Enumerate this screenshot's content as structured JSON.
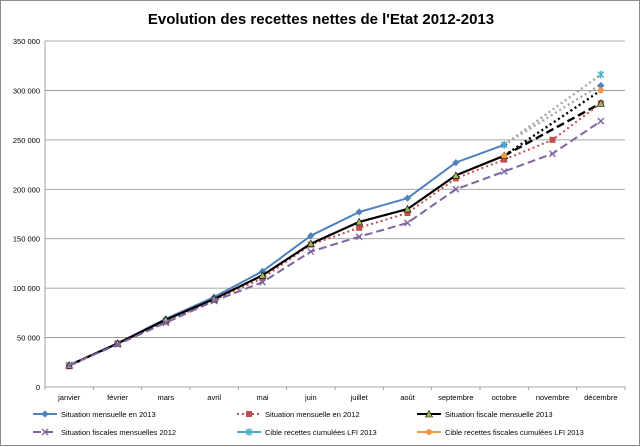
{
  "chart_data": {
    "type": "line",
    "title": "Evolution des recettes nettes de l'Etat 2012-2013",
    "xlabel": "",
    "ylabel": "",
    "categories": [
      "janvier",
      "février",
      "mars",
      "avril",
      "mai",
      "juin",
      "juillet",
      "août",
      "septembre",
      "octobre",
      "novembre",
      "décembre"
    ],
    "y_ticks": [
      "0",
      "50 000",
      "100 000",
      "150 000",
      "200 000",
      "250 000",
      "300 000",
      "350 000"
    ],
    "ylim": [
      0,
      350000
    ],
    "grid": true,
    "legend_position": "bottom",
    "series": [
      {
        "name": "Situation mensuelle en 2013",
        "color": "#4f81bd",
        "style": "solid",
        "marker": "diamond",
        "values": [
          22000,
          44000,
          69000,
          91000,
          117000,
          153000,
          177000,
          191000,
          227000,
          245000,
          null,
          305000
        ]
      },
      {
        "name": "Situation mensuelle en 2012",
        "color": "#c0504d",
        "style": "dotted",
        "marker": "square",
        "values": [
          21000,
          44000,
          66000,
          88000,
          110000,
          144000,
          161000,
          176000,
          211000,
          230000,
          250000,
          287000
        ]
      },
      {
        "name": "Situation fiscale mensuelle 2013",
        "color": "#000000",
        "style": "solid",
        "marker": "triangle",
        "values": [
          22000,
          44000,
          68000,
          89000,
          113000,
          145000,
          167000,
          180000,
          214000,
          234000,
          null,
          287000
        ]
      },
      {
        "name": "Situation fiscales mensuelles 2012",
        "color": "#8064a2",
        "style": "dashed",
        "marker": "x",
        "values": [
          22000,
          43000,
          65000,
          87000,
          106000,
          137000,
          152000,
          166000,
          200000,
          218000,
          236000,
          269000
        ]
      },
      {
        "name": "Cible recettes cumulées LFI 2013",
        "color": "#4bacc6",
        "style": "solid",
        "marker": "star",
        "values": [
          null,
          null,
          null,
          null,
          null,
          null,
          null,
          null,
          null,
          245000,
          null,
          316000
        ]
      },
      {
        "name": "Cible recettes fiscales cumulées LFI 2013",
        "color": "#f79646",
        "style": "solid",
        "marker": "circle",
        "values": [
          null,
          null,
          null,
          null,
          null,
          null,
          null,
          null,
          null,
          234000,
          null,
          300000
        ]
      }
    ],
    "projections": [
      {
        "color": "#a6a6a6",
        "style": "dotted",
        "from": [
          9,
          245000
        ],
        "to": [
          11,
          316000
        ]
      },
      {
        "color": "#a6a6a6",
        "style": "dotted",
        "from": [
          9,
          245000
        ],
        "to": [
          11,
          306000
        ]
      },
      {
        "color": "#000000",
        "style": "dotted",
        "from": [
          9,
          234000
        ],
        "to": [
          11,
          300000
        ]
      },
      {
        "color": "#000000",
        "style": "dashed",
        "from": [
          9,
          234000
        ],
        "to": [
          11,
          287000
        ]
      }
    ]
  }
}
